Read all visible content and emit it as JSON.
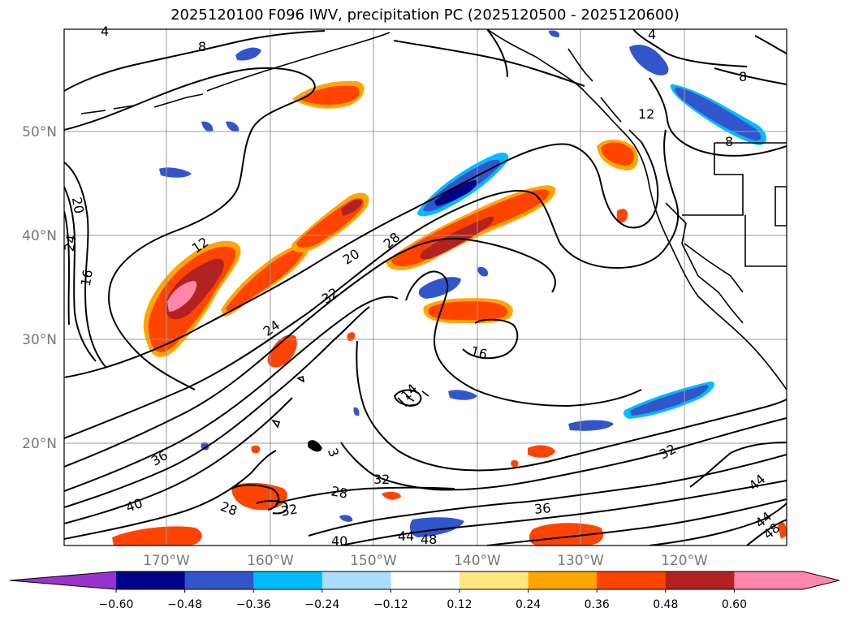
{
  "title": "2025120100 F096 IWV, precipitation PC (2025120500 - 2025120600)",
  "map": {
    "lat_labels": [
      "50°N",
      "40°N",
      "30°N",
      "20°N"
    ],
    "lon_labels": [
      "170°W",
      "160°W",
      "150°W",
      "140°W",
      "130°W",
      "120°W"
    ],
    "contour_labels": [
      "4",
      "8",
      "4",
      "8",
      "12",
      "8",
      "20",
      "24",
      "16",
      "12",
      "20",
      "28",
      "32",
      "24",
      "16",
      "14",
      "36",
      "3",
      "32",
      "28",
      "40",
      "28",
      "32",
      "36",
      "44",
      "48",
      "32",
      "44",
      "44",
      "48",
      "40"
    ]
  },
  "colorbar": {
    "ticks": [
      "−0.60",
      "−0.48",
      "−0.36",
      "−0.24",
      "−0.12",
      "0.12",
      "0.24",
      "0.36",
      "0.48",
      "0.60"
    ],
    "colors": [
      "#9933cc",
      "#000088",
      "#3355cc",
      "#00bbff",
      "#aaddff",
      "#ffffff",
      "#ffe680",
      "#ffa500",
      "#ff4400",
      "#b22222",
      "#ff88aa",
      "#ff88aa"
    ]
  }
}
